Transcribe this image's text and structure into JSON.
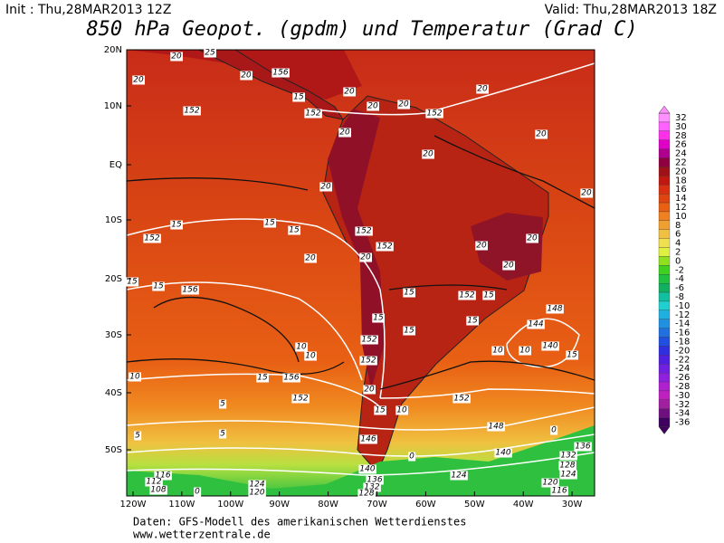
{
  "header": {
    "init": "Init : Thu,28MAR2013 12Z",
    "valid": "Valid: Thu,28MAR2013 18Z",
    "title": "850 hPa Geopot. (gpdm) und Temperatur (Grad C)"
  },
  "lat_labels": [
    "20N",
    "10N",
    "EQ",
    "10S",
    "20S",
    "30S",
    "40S",
    "50S"
  ],
  "lon_labels": [
    "120W",
    "110W",
    "100W",
    "90W",
    "80W",
    "70W",
    "60W",
    "50W",
    "40W",
    "30W"
  ],
  "colorbar": {
    "labels": [
      "32",
      "30",
      "28",
      "26",
      "24",
      "22",
      "20",
      "18",
      "16",
      "14",
      "12",
      "10",
      "8",
      "6",
      "4",
      "2",
      "0",
      "-2",
      "-4",
      "-6",
      "-8",
      "-10",
      "-12",
      "-14",
      "-16",
      "-18",
      "-20",
      "-22",
      "-24",
      "-26",
      "-28",
      "-30",
      "-32",
      "-34",
      "-36"
    ],
    "colors": [
      "#ff90ff",
      "#ff60ff",
      "#ff30e8",
      "#e000c8",
      "#b00090",
      "#900040",
      "#a01018",
      "#c01810",
      "#d83010",
      "#e04410",
      "#e86010",
      "#f08020",
      "#f0a030",
      "#f0c040",
      "#f0e050",
      "#e0f040",
      "#90e020",
      "#40d020",
      "#20c040",
      "#10b060",
      "#10c0a0",
      "#20d0d0",
      "#20b0e0",
      "#2090e0",
      "#2070e0",
      "#2050e0",
      "#3030e0",
      "#5020e0",
      "#7020e0",
      "#9020e0",
      "#b020d0",
      "#c020c0",
      "#a020a0",
      "#701080",
      "#400060"
    ]
  },
  "contour_labels": [
    "20",
    "25",
    "20",
    "156",
    "20",
    "152",
    "152",
    "15",
    "20",
    "20",
    "20",
    "152",
    "20",
    "20",
    "20",
    "20",
    "20",
    "20",
    "152",
    "15",
    "15",
    "15",
    "152",
    "152",
    "20",
    "20",
    "20",
    "20",
    "20",
    "15",
    "156",
    "15",
    "15",
    "152",
    "15",
    "15",
    "15",
    "15",
    "144",
    "148",
    "140",
    "15",
    "152",
    "10",
    "10",
    "152",
    "10",
    "10",
    "10",
    "15",
    "156",
    "20",
    "152",
    "15",
    "10",
    "152",
    "148",
    "5",
    "5",
    "5",
    "146",
    "0",
    "140",
    "0",
    "136",
    "132",
    "128",
    "140",
    "136",
    "132",
    "128",
    "124",
    "124",
    "120",
    "116",
    "116",
    "112",
    "108",
    "124",
    "120",
    "0"
  ],
  "footer": {
    "source": "Daten: GFS-Modell des amerikanischen Wetterdienstes",
    "site": "www.wetterzentrale.de"
  }
}
